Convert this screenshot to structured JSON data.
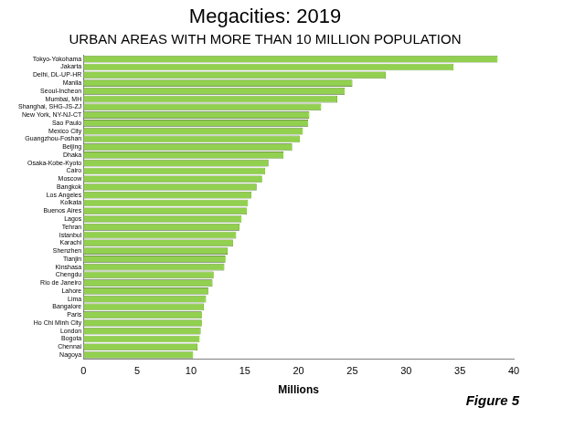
{
  "chart_data": {
    "type": "bar",
    "orientation": "horizontal",
    "title": "Megacities: 2019",
    "subtitle": "URBAN AREAS WITH MORE THAN 10 MILLION POPULATION",
    "x_label": "Millions",
    "annotations": [
      "Figure 5"
    ],
    "categories": [
      "Tokyo-Yokohama",
      "Jakarta",
      "Delhi, DL-UP-HR",
      "Manila",
      "Seoul-Incheon",
      "Mumbai, MH",
      "Shanghai, SHG-JS-ZJ",
      "New York, NY-NJ-CT",
      "Sao Paulo",
      "Mexico City",
      "Guangzhou-Foshan",
      "Beijing",
      "Dhaka",
      "Osaka-Kobe-Kyoto",
      "Cairo",
      "Moscow",
      "Bangkok",
      "Los Angeles",
      "Kolkata",
      "Buenos Aires",
      "Lagos",
      "Tehran",
      "Istanbul",
      "Karachi",
      "Shenzhen",
      "Tianjin",
      "Kinshasa",
      "Chengdu",
      "Rio de Janeiro",
      "Lahore",
      "Lima",
      "Bangalore",
      "Paris",
      "Ho Chi Minh City",
      "London",
      "Bogota",
      "Chennai",
      "Nagoya"
    ],
    "values": [
      38.5,
      34.4,
      28.1,
      25.0,
      24.3,
      23.6,
      22.1,
      21.0,
      20.9,
      20.4,
      20.1,
      19.4,
      18.6,
      17.2,
      16.9,
      16.6,
      16.1,
      15.6,
      15.3,
      15.2,
      14.7,
      14.5,
      14.2,
      13.9,
      13.4,
      13.2,
      13.1,
      12.1,
      12.0,
      11.6,
      11.4,
      11.2,
      11.0,
      11.0,
      10.9,
      10.8,
      10.6,
      10.2
    ],
    "color": "#92d050",
    "xlim": [
      0,
      40
    ],
    "xticks": [
      0,
      5,
      10,
      15,
      20,
      25,
      30,
      35,
      40
    ],
    "grid": false,
    "data_labels": false
  }
}
